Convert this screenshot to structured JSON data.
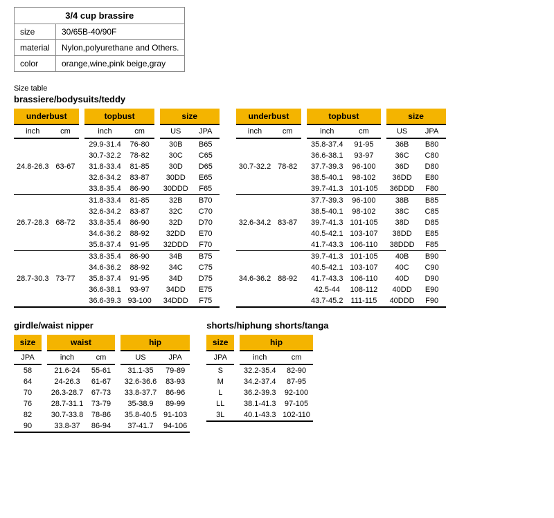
{
  "info": {
    "title": "3/4 cup brassire",
    "rows": [
      {
        "label": "size",
        "value": "30/65B-40/90F"
      },
      {
        "label": "material",
        "value": "Nylon,polyurethane and Others."
      },
      {
        "label": "color",
        "value": "orange,wine,pink beige,gray"
      }
    ]
  },
  "size_table_label": "Size table",
  "section1_title": "brassiere/bodysuits/teddy",
  "headers": {
    "underbust": "underbust",
    "topbust": "topbust",
    "sizeh": "size",
    "inch": "inch",
    "cm": "cm",
    "us": "US",
    "jpa": "JPA",
    "waist": "waist",
    "hip": "hip"
  },
  "bra_left": [
    {
      "ub_inch": "",
      "ub_cm": "",
      "tb_inch": "29.9-31.4",
      "tb_cm": "76-80",
      "us": "30B",
      "jpa": "B65"
    },
    {
      "ub_inch": "",
      "ub_cm": "",
      "tb_inch": "30.7-32.2",
      "tb_cm": "78-82",
      "us": "30C",
      "jpa": "C65"
    },
    {
      "ub_inch": "24.8-26.3",
      "ub_cm": "63-67",
      "tb_inch": "31.8-33.4",
      "tb_cm": "81-85",
      "us": "30D",
      "jpa": "D65"
    },
    {
      "ub_inch": "",
      "ub_cm": "",
      "tb_inch": "32.6-34.2",
      "tb_cm": "83-87",
      "us": "30DD",
      "jpa": "E65"
    },
    {
      "ub_inch": "",
      "ub_cm": "",
      "tb_inch": "33.8-35.4",
      "tb_cm": "86-90",
      "us": "30DDD",
      "jpa": "F65",
      "sep": true
    },
    {
      "ub_inch": "",
      "ub_cm": "",
      "tb_inch": "31.8-33.4",
      "tb_cm": "81-85",
      "us": "32B",
      "jpa": "B70"
    },
    {
      "ub_inch": "",
      "ub_cm": "",
      "tb_inch": "32.6-34.2",
      "tb_cm": "83-87",
      "us": "32C",
      "jpa": "C70"
    },
    {
      "ub_inch": "26.7-28.3",
      "ub_cm": "68-72",
      "tb_inch": "33.8-35.4",
      "tb_cm": "86-90",
      "us": "32D",
      "jpa": "D70"
    },
    {
      "ub_inch": "",
      "ub_cm": "",
      "tb_inch": "34.6-36.2",
      "tb_cm": "88-92",
      "us": "32DD",
      "jpa": "E70"
    },
    {
      "ub_inch": "",
      "ub_cm": "",
      "tb_inch": "35.8-37.4",
      "tb_cm": "91-95",
      "us": "32DDD",
      "jpa": "F70",
      "sep": true
    },
    {
      "ub_inch": "",
      "ub_cm": "",
      "tb_inch": "33.8-35.4",
      "tb_cm": "86-90",
      "us": "34B",
      "jpa": "B75"
    },
    {
      "ub_inch": "",
      "ub_cm": "",
      "tb_inch": "34.6-36.2",
      "tb_cm": "88-92",
      "us": "34C",
      "jpa": "C75"
    },
    {
      "ub_inch": "28.7-30.3",
      "ub_cm": "73-77",
      "tb_inch": "35.8-37.4",
      "tb_cm": "91-95",
      "us": "34D",
      "jpa": "D75"
    },
    {
      "ub_inch": "",
      "ub_cm": "",
      "tb_inch": "36.6-38.1",
      "tb_cm": "93-97",
      "us": "34DD",
      "jpa": "E75"
    },
    {
      "ub_inch": "",
      "ub_cm": "",
      "tb_inch": "36.6-39.3",
      "tb_cm": "93-100",
      "us": "34DDD",
      "jpa": "F75",
      "last": true
    }
  ],
  "bra_right": [
    {
      "ub_inch": "",
      "ub_cm": "",
      "tb_inch": "35.8-37.4",
      "tb_cm": "91-95",
      "us": "36B",
      "jpa": "B80"
    },
    {
      "ub_inch": "",
      "ub_cm": "",
      "tb_inch": "36.6-38.1",
      "tb_cm": "93-97",
      "us": "36C",
      "jpa": "C80"
    },
    {
      "ub_inch": "30.7-32.2",
      "ub_cm": "78-82",
      "tb_inch": "37.7-39.3",
      "tb_cm": "96-100",
      "us": "36D",
      "jpa": "D80"
    },
    {
      "ub_inch": "",
      "ub_cm": "",
      "tb_inch": "38.5-40.1",
      "tb_cm": "98-102",
      "us": "36DD",
      "jpa": "E80"
    },
    {
      "ub_inch": "",
      "ub_cm": "",
      "tb_inch": "39.7-41.3",
      "tb_cm": "101-105",
      "us": "36DDD",
      "jpa": "F80",
      "sep": true
    },
    {
      "ub_inch": "",
      "ub_cm": "",
      "tb_inch": "37.7-39.3",
      "tb_cm": "96-100",
      "us": "38B",
      "jpa": "B85"
    },
    {
      "ub_inch": "",
      "ub_cm": "",
      "tb_inch": "38.5-40.1",
      "tb_cm": "98-102",
      "us": "38C",
      "jpa": "C85"
    },
    {
      "ub_inch": "32.6-34.2",
      "ub_cm": "83-87",
      "tb_inch": "39.7-41.3",
      "tb_cm": "101-105",
      "us": "38D",
      "jpa": "D85"
    },
    {
      "ub_inch": "",
      "ub_cm": "",
      "tb_inch": "40.5-42.1",
      "tb_cm": "103-107",
      "us": "38DD",
      "jpa": "E85"
    },
    {
      "ub_inch": "",
      "ub_cm": "",
      "tb_inch": "41.7-43.3",
      "tb_cm": "106-110",
      "us": "38DDD",
      "jpa": "F85",
      "sep": true
    },
    {
      "ub_inch": "",
      "ub_cm": "",
      "tb_inch": "39.7-41.3",
      "tb_cm": "101-105",
      "us": "40B",
      "jpa": "B90"
    },
    {
      "ub_inch": "",
      "ub_cm": "",
      "tb_inch": "40.5-42.1",
      "tb_cm": "103-107",
      "us": "40C",
      "jpa": "C90"
    },
    {
      "ub_inch": "34.6-36.2",
      "ub_cm": "88-92",
      "tb_inch": "41.7-43.3",
      "tb_cm": "106-110",
      "us": "40D",
      "jpa": "D90"
    },
    {
      "ub_inch": "",
      "ub_cm": "",
      "tb_inch": "42.5-44",
      "tb_cm": "108-112",
      "us": "40DD",
      "jpa": "E90"
    },
    {
      "ub_inch": "",
      "ub_cm": "",
      "tb_inch": "43.7-45.2",
      "tb_cm": "111-115",
      "us": "40DDD",
      "jpa": "F90",
      "last": true
    }
  ],
  "section2_title": "girdle/waist nipper",
  "girdle": [
    {
      "jpa": "58",
      "w_inch": "21.6-24",
      "w_cm": "55-61",
      "h_us": "31.1-35",
      "h_jpa": "79-89"
    },
    {
      "jpa": "64",
      "w_inch": "24-26.3",
      "w_cm": "61-67",
      "h_us": "32.6-36.6",
      "h_jpa": "83-93"
    },
    {
      "jpa": "70",
      "w_inch": "26.3-28.7",
      "w_cm": "67-73",
      "h_us": "33.8-37.7",
      "h_jpa": "86-96"
    },
    {
      "jpa": "76",
      "w_inch": "28.7-31.1",
      "w_cm": "73-79",
      "h_us": "35-38.9",
      "h_jpa": "89-99"
    },
    {
      "jpa": "82",
      "w_inch": "30.7-33.8",
      "w_cm": "78-86",
      "h_us": "35.8-40.5",
      "h_jpa": "91-103"
    },
    {
      "jpa": "90",
      "w_inch": "33.8-37",
      "w_cm": "86-94",
      "h_us": "37-41.7",
      "h_jpa": "94-106",
      "last": true
    }
  ],
  "section3_title": "shorts/hiphung shorts/tanga",
  "shorts": [
    {
      "jpa": "S",
      "h_inch": "32.2-35.4",
      "h_cm": "82-90"
    },
    {
      "jpa": "M",
      "h_inch": "34.2-37.4",
      "h_cm": "87-95"
    },
    {
      "jpa": "L",
      "h_inch": "36.2-39.3",
      "h_cm": "92-100"
    },
    {
      "jpa": "LL",
      "h_inch": "38.1-41.3",
      "h_cm": "97-105"
    },
    {
      "jpa": "3L",
      "h_inch": "40.1-43.3",
      "h_cm": "102-110",
      "last": true
    }
  ]
}
